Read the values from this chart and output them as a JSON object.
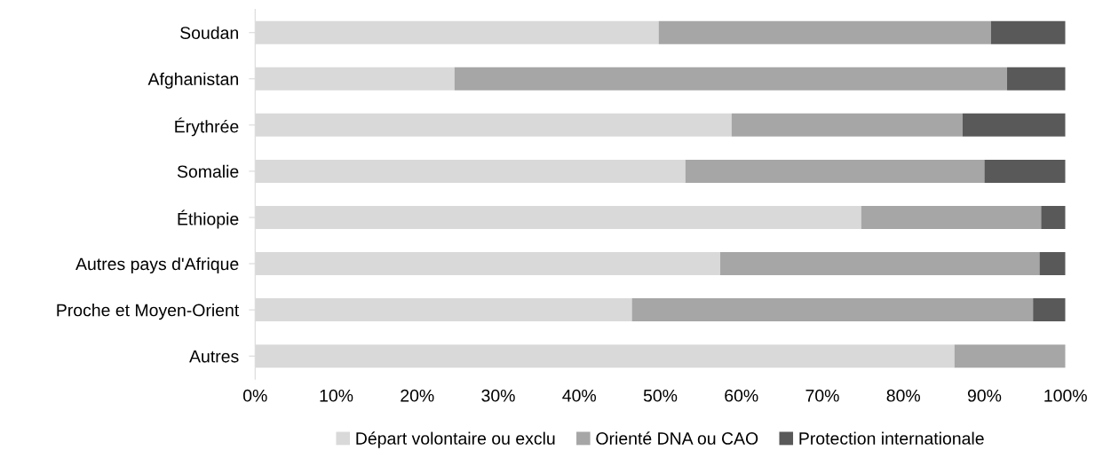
{
  "chart_data": {
    "type": "bar",
    "orientation": "horizontal",
    "stacked": true,
    "categories": [
      "Soudan",
      "Afghanistan",
      "Érythrée",
      "Somalie",
      "Éthiopie",
      "Autres pays d'Afrique",
      "Proche et Moyen-Orient",
      "Autres"
    ],
    "series": [
      {
        "name": "Départ volontaire ou exclu",
        "color": "#d9d9d9",
        "values": [
          49.8,
          24.6,
          58.8,
          53.1,
          74.8,
          57.4,
          46.5,
          86.3
        ]
      },
      {
        "name": "Orienté DNA ou CAO",
        "color": "#a6a6a6",
        "values": [
          41.0,
          68.2,
          28.5,
          36.9,
          22.2,
          39.4,
          49.5,
          13.7
        ]
      },
      {
        "name": "Protection internationale",
        "color": "#595959",
        "values": [
          9.2,
          7.2,
          12.7,
          10.0,
          3.0,
          3.2,
          4.0,
          0
        ]
      }
    ],
    "xlim": [
      0,
      100
    ],
    "xticks": [
      {
        "value": 0,
        "label": "0%"
      },
      {
        "value": 10,
        "label": "10%"
      },
      {
        "value": 20,
        "label": "20%"
      },
      {
        "value": 30,
        "label": "30%"
      },
      {
        "value": 40,
        "label": "40%"
      },
      {
        "value": 50,
        "label": "50%"
      },
      {
        "value": 60,
        "label": "60%"
      },
      {
        "value": 70,
        "label": "70%"
      },
      {
        "value": 80,
        "label": "80%"
      },
      {
        "value": 90,
        "label": "90%"
      },
      {
        "value": 100,
        "label": "100%"
      }
    ],
    "grid": false,
    "legend": "bottom"
  }
}
